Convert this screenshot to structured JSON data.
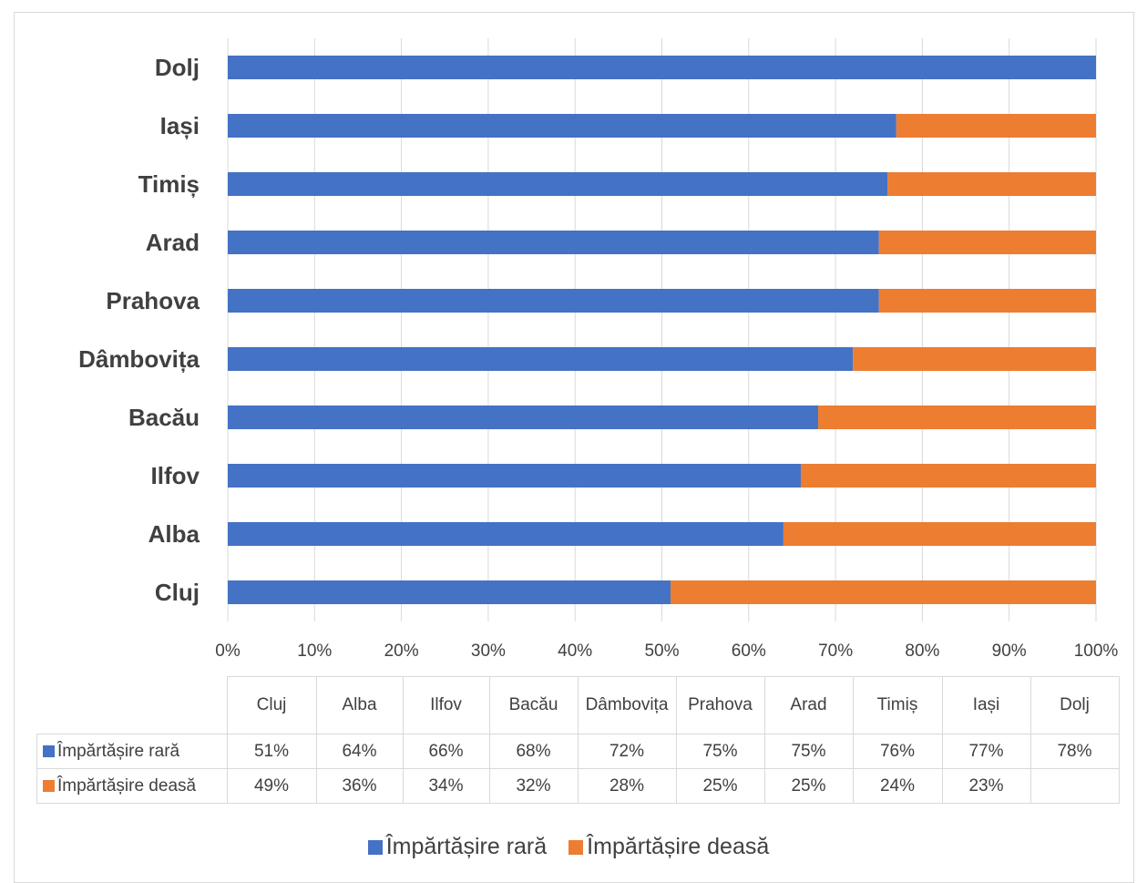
{
  "chart_data": {
    "type": "bar",
    "orientation": "horizontal",
    "stacked": "percent",
    "categories": [
      "Cluj",
      "Alba",
      "Ilfov",
      "Bacău",
      "Dâmbovița",
      "Prahova",
      "Arad",
      "Timiș",
      "Iași",
      "Dolj"
    ],
    "series": [
      {
        "name": "Împărtășire rară",
        "color": "#4472c4",
        "values": [
          51,
          64,
          66,
          68,
          72,
          75,
          75,
          76,
          77,
          78
        ]
      },
      {
        "name": "Împărtășire deasă",
        "color": "#ed7d31",
        "values": [
          49,
          36,
          34,
          32,
          28,
          25,
          25,
          24,
          23,
          null
        ]
      }
    ],
    "table_rows": [
      {
        "name": "Împărtășire rară",
        "values": [
          "51%",
          "64%",
          "66%",
          "68%",
          "72%",
          "75%",
          "75%",
          "76%",
          "77%",
          "78%"
        ]
      },
      {
        "name": "Împărtășire deasă",
        "values": [
          "49%",
          "36%",
          "34%",
          "32%",
          "28%",
          "25%",
          "25%",
          "24%",
          "23%",
          ""
        ]
      }
    ],
    "xlim": [
      0,
      100
    ],
    "x_ticks": [
      "0%",
      "10%",
      "20%",
      "30%",
      "40%",
      "50%",
      "60%",
      "70%",
      "80%",
      "90%",
      "100%"
    ],
    "grid": "vertical",
    "legend_position": "bottom",
    "data_table": true
  }
}
